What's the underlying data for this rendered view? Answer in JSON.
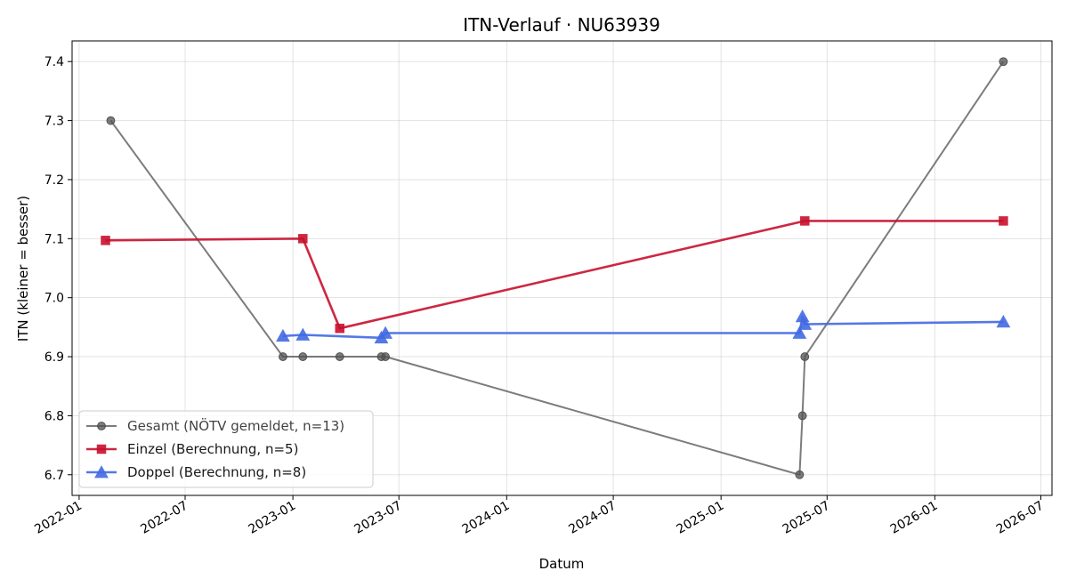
{
  "chart_data": {
    "type": "line",
    "title": "ITN-Verlauf · NU63939",
    "xlabel": "Datum",
    "ylabel": "ITN  (kleiner = besser)",
    "x_type": "date",
    "xlim": [
      "2021-12-20",
      "2026-07-20"
    ],
    "ylim": [
      6.665,
      7.435
    ],
    "x_ticks": [
      "2022-01-01",
      "2022-07-01",
      "2023-01-01",
      "2023-07-01",
      "2024-01-01",
      "2024-07-01",
      "2025-01-01",
      "2025-07-01",
      "2026-01-01",
      "2026-07-01"
    ],
    "x_tick_labels": [
      "2022-01",
      "2022-07",
      "2023-01",
      "2023-07",
      "2024-01",
      "2024-07",
      "2025-01",
      "2025-07",
      "2026-01",
      "2026-07"
    ],
    "y_ticks": [
      6.7,
      6.8,
      6.9,
      7.0,
      7.1,
      7.2,
      7.3,
      7.4
    ],
    "y_tick_labels": [
      "6.7",
      "6.8",
      "6.9",
      "7.0",
      "7.1",
      "7.2",
      "7.3",
      "7.4"
    ],
    "grid": true,
    "legend_position": "lower-left",
    "series": [
      {
        "name": "Gesamt (NÖTV gemeldet, n=13)",
        "color": "#505050",
        "marker": "circle",
        "x": [
          "2022-02-24",
          "2022-12-15",
          "2023-01-18",
          "2023-03-22",
          "2023-06-01",
          "2023-06-08",
          "2025-05-15",
          "2025-05-20",
          "2025-05-24",
          "2026-04-28"
        ],
        "y": [
          7.3,
          6.9,
          6.9,
          6.9,
          6.9,
          6.9,
          6.7,
          6.8,
          6.9,
          7.4
        ]
      },
      {
        "name": "Einzel (Berechnung, n=5)",
        "color": "#c8102e",
        "marker": "square",
        "x": [
          "2022-02-15",
          "2023-01-18",
          "2023-03-22",
          "2025-05-24",
          "2026-04-28"
        ],
        "y": [
          7.097,
          7.1,
          6.948,
          7.13,
          7.13
        ]
      },
      {
        "name": "Doppel (Berechnung, n=8)",
        "color": "#4169e1",
        "marker": "triangle",
        "x": [
          "2022-12-15",
          "2023-01-18",
          "2023-06-01",
          "2023-06-08",
          "2025-05-15",
          "2025-05-20",
          "2025-05-24",
          "2026-04-28"
        ],
        "y": [
          6.935,
          6.937,
          6.932,
          6.94,
          6.94,
          6.968,
          6.955,
          6.959
        ]
      }
    ]
  }
}
